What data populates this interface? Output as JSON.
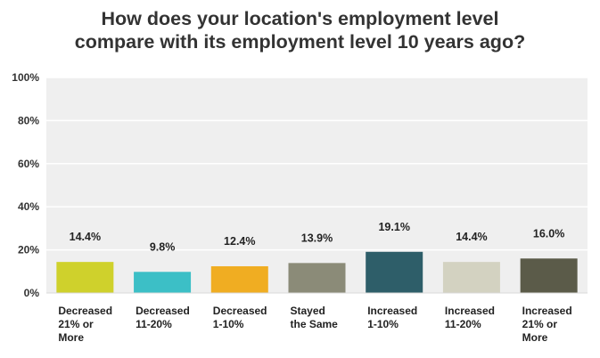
{
  "chart_data": {
    "type": "bar",
    "title_lines": [
      "How does your location's employment level",
      "compare with its employment level 10 years ago?"
    ],
    "categories": [
      [
        "Decreased",
        "21% or",
        "More"
      ],
      [
        "Decreased",
        "11-20%"
      ],
      [
        "Decreased",
        "1-10%"
      ],
      [
        "Stayed",
        "the Same"
      ],
      [
        "Increased",
        "1-10%"
      ],
      [
        "Increased",
        "11-20%"
      ],
      [
        "Increased",
        "21% or",
        "More"
      ]
    ],
    "values": [
      14.4,
      9.8,
      12.4,
      13.9,
      19.1,
      14.4,
      16.0
    ],
    "value_labels": [
      "14.4%",
      "9.8%",
      "12.4%",
      "13.9%",
      "19.1%",
      "14.4%",
      "16.0%"
    ],
    "colors": [
      "#cfd12c",
      "#3cbfc6",
      "#f0ad22",
      "#8b8b78",
      "#2e5e69",
      "#d3d2c1",
      "#5b5b49"
    ],
    "ylim": [
      0,
      100
    ],
    "yticks": [
      0,
      20,
      40,
      60,
      80,
      100
    ],
    "ytick_labels": [
      "0%",
      "20%",
      "40%",
      "60%",
      "80%",
      "100%"
    ],
    "grid": true,
    "plot_background": "#efefef",
    "grid_color": "#ffffff"
  }
}
